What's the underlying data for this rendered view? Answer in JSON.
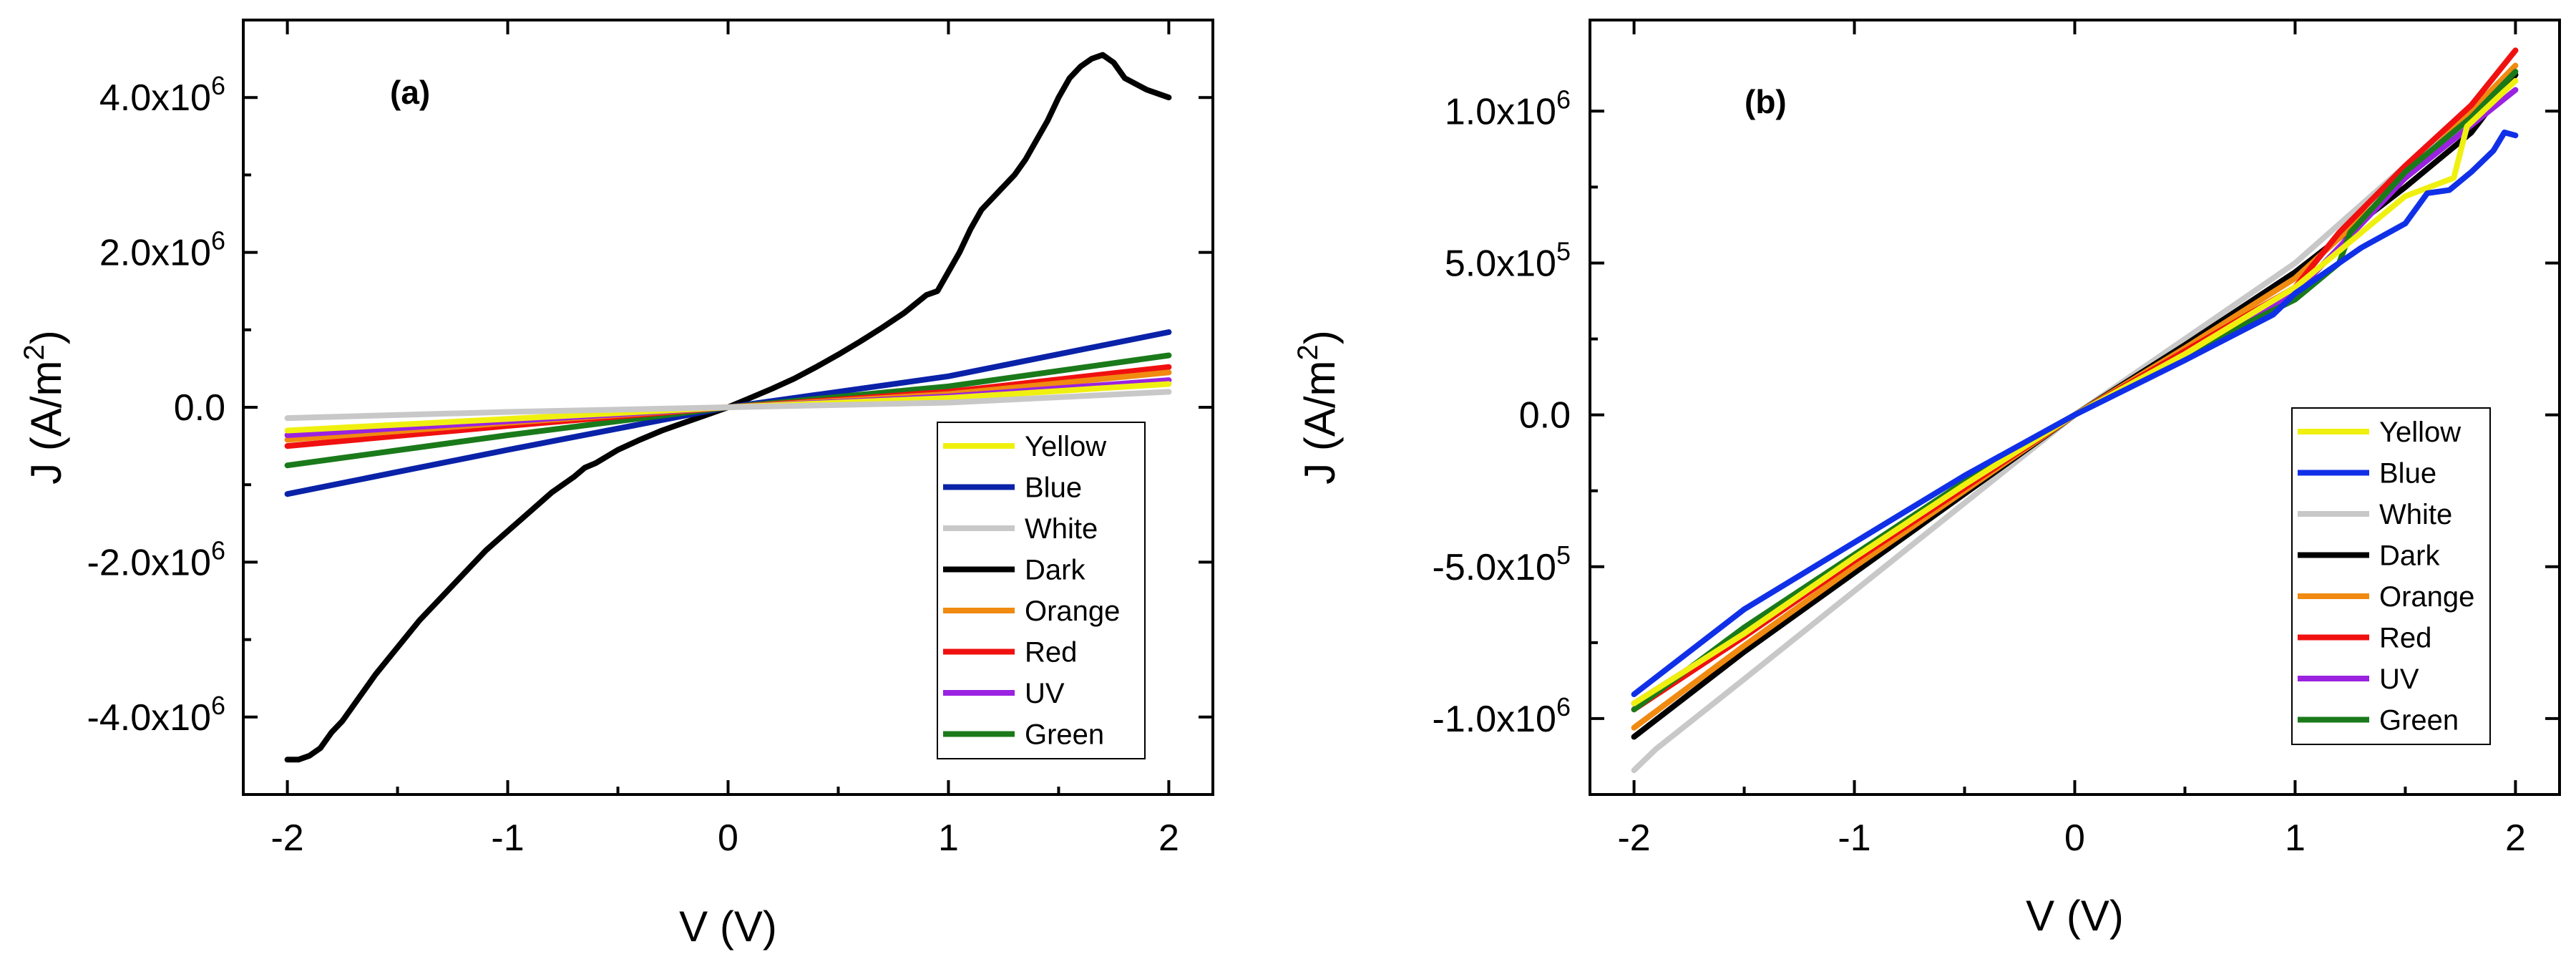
{
  "chart_data": [
    {
      "type": "line",
      "panel_label": "(a)",
      "xlabel": "V (V)",
      "ylabel_main": "J (A/m",
      "ylabel_sup": "2",
      "ylabel_close": ")",
      "xlim": [
        -2.2,
        2.2
      ],
      "ylim": [
        -5.0,
        5.0
      ],
      "y_multiplier": "x10^6",
      "x_ticks": [
        {
          "value": -2,
          "label": "-2"
        },
        {
          "value": -1,
          "label": "-1"
        },
        {
          "value": 0,
          "label": "0"
        },
        {
          "value": 1,
          "label": "1"
        },
        {
          "value": 2,
          "label": "2"
        }
      ],
      "y_ticks": [
        {
          "value": 4.0,
          "mant": "4.0x10",
          "exp": "6"
        },
        {
          "value": 2.0,
          "mant": "2.0x10",
          "exp": "6"
        },
        {
          "value": 0.0,
          "mant": "0.0",
          "exp": ""
        },
        {
          "value": -2.0,
          "mant": "-2.0x10",
          "exp": "6"
        },
        {
          "value": -4.0,
          "mant": "-4.0x10",
          "exp": "6"
        }
      ],
      "legend_position": "bottom-right",
      "series": [
        {
          "name": "Dark",
          "color": "#000000",
          "x": [
            -2.0,
            -1.95,
            -1.9,
            -1.85,
            -1.8,
            -1.75,
            -1.7,
            -1.6,
            -1.5,
            -1.4,
            -1.3,
            -1.2,
            -1.1,
            -1.0,
            -0.9,
            -0.8,
            -0.7,
            -0.65,
            -0.6,
            -0.5,
            -0.4,
            -0.3,
            -0.2,
            -0.1,
            0.0,
            0.1,
            0.2,
            0.3,
            0.4,
            0.5,
            0.6,
            0.7,
            0.8,
            0.9,
            0.95,
            1.0,
            1.05,
            1.1,
            1.15,
            1.2,
            1.25,
            1.3,
            1.35,
            1.4,
            1.45,
            1.5,
            1.55,
            1.6,
            1.65,
            1.7,
            1.75,
            1.8,
            1.9,
            2.0
          ],
          "values": [
            -4.55,
            -4.55,
            -4.5,
            -4.4,
            -4.2,
            -4.05,
            -3.85,
            -3.45,
            -3.1,
            -2.75,
            -2.45,
            -2.15,
            -1.85,
            -1.6,
            -1.35,
            -1.1,
            -0.9,
            -0.78,
            -0.72,
            -0.55,
            -0.42,
            -0.3,
            -0.2,
            -0.1,
            0.0,
            0.12,
            0.24,
            0.37,
            0.52,
            0.68,
            0.85,
            1.03,
            1.22,
            1.45,
            1.5,
            1.75,
            2.0,
            2.3,
            2.55,
            2.7,
            2.85,
            3.0,
            3.2,
            3.45,
            3.7,
            4.0,
            4.25,
            4.4,
            4.5,
            4.55,
            4.45,
            4.25,
            4.1,
            4.0
          ]
        },
        {
          "name": "Blue",
          "color": "#0a22a8",
          "x": [
            -2.0,
            -1.0,
            0.0,
            1.0,
            2.0
          ],
          "values": [
            -1.12,
            -0.55,
            0.0,
            0.4,
            0.97
          ]
        },
        {
          "name": "Green",
          "color": "#1a7a1a",
          "x": [
            -2.0,
            -1.0,
            0.0,
            1.0,
            2.0
          ],
          "values": [
            -0.75,
            -0.36,
            0.0,
            0.27,
            0.67
          ]
        },
        {
          "name": "Red",
          "color": "#f01010",
          "x": [
            -2.0,
            -1.0,
            0.0,
            1.0,
            2.0
          ],
          "values": [
            -0.5,
            -0.24,
            0.0,
            0.2,
            0.52
          ]
        },
        {
          "name": "Orange",
          "color": "#f08a10",
          "x": [
            -2.0,
            -1.0,
            0.0,
            1.0,
            2.0
          ],
          "values": [
            -0.42,
            -0.2,
            0.0,
            0.17,
            0.45
          ]
        },
        {
          "name": "UV",
          "color": "#9a22e0",
          "x": [
            -2.0,
            -1.0,
            0.0,
            1.0,
            2.0
          ],
          "values": [
            -0.36,
            -0.18,
            0.0,
            0.14,
            0.35
          ]
        },
        {
          "name": "Yellow",
          "color": "#f0f010",
          "x": [
            -2.0,
            -1.0,
            0.0,
            1.0,
            2.0
          ],
          "values": [
            -0.3,
            -0.15,
            0.0,
            0.12,
            0.3
          ]
        },
        {
          "name": "White",
          "color": "#c8c8c8",
          "x": [
            -2.0,
            -1.0,
            0.0,
            1.0,
            2.0
          ],
          "values": [
            -0.14,
            -0.06,
            0.0,
            0.06,
            0.2
          ]
        }
      ],
      "legend_order": [
        "Yellow",
        "Blue",
        "White",
        "Dark",
        "Orange",
        "Red",
        "UV",
        "Green"
      ]
    },
    {
      "type": "line",
      "panel_label": "(b)",
      "xlabel": "V (V)",
      "ylabel_main": "J (A/m",
      "ylabel_sup": "2",
      "ylabel_close": ")",
      "xlim": [
        -2.2,
        2.2
      ],
      "ylim": [
        -1.25,
        1.3
      ],
      "y_multiplier": "x10^6",
      "x_ticks": [
        {
          "value": -2,
          "label": "-2"
        },
        {
          "value": -1,
          "label": "-1"
        },
        {
          "value": 0,
          "label": "0"
        },
        {
          "value": 1,
          "label": "1"
        },
        {
          "value": 2,
          "label": "2"
        }
      ],
      "y_ticks": [
        {
          "value": 1.0,
          "mant": "1.0x10",
          "exp": "6"
        },
        {
          "value": 0.5,
          "mant": "5.0x10",
          "exp": "5"
        },
        {
          "value": 0.0,
          "mant": "0.0",
          "exp": ""
        },
        {
          "value": -0.5,
          "mant": "-5.0x10",
          "exp": "5"
        },
        {
          "value": -1.0,
          "mant": "-1.0x10",
          "exp": "6"
        }
      ],
      "legend_position": "bottom-right",
      "series": [
        {
          "name": "White",
          "color": "#c8c8c8",
          "x": [
            -2.0,
            -1.9,
            -1.5,
            -1.0,
            -0.5,
            0.0,
            0.5,
            1.0,
            1.5,
            1.8,
            2.0
          ],
          "values": [
            -1.17,
            -1.1,
            -0.87,
            -0.58,
            -0.29,
            0.0,
            0.25,
            0.5,
            0.82,
            1.0,
            1.12
          ]
        },
        {
          "name": "Dark",
          "color": "#000000",
          "x": [
            -2.0,
            -1.5,
            -1.0,
            -0.5,
            0.0,
            0.5,
            1.0,
            1.5,
            1.8,
            2.0
          ],
          "values": [
            -1.06,
            -0.78,
            -0.52,
            -0.26,
            0.0,
            0.23,
            0.47,
            0.75,
            0.93,
            1.12
          ]
        },
        {
          "name": "Orange",
          "color": "#f08a10",
          "x": [
            -2.0,
            -1.5,
            -1.0,
            -0.5,
            0.0,
            0.5,
            1.0,
            1.5,
            2.0
          ],
          "values": [
            -1.03,
            -0.76,
            -0.5,
            -0.25,
            0.0,
            0.22,
            0.45,
            0.78,
            1.15
          ]
        },
        {
          "name": "Red",
          "color": "#f01010",
          "x": [
            -2.0,
            -1.5,
            -1.0,
            -0.5,
            0.0,
            0.5,
            1.0,
            1.2,
            1.5,
            1.8,
            2.0
          ],
          "values": [
            -0.97,
            -0.73,
            -0.48,
            -0.24,
            0.0,
            0.21,
            0.42,
            0.6,
            0.82,
            1.02,
            1.2
          ]
        },
        {
          "name": "UV",
          "color": "#9a22e0",
          "x": [
            -2.0,
            -1.5,
            -1.0,
            -0.5,
            0.0,
            0.5,
            1.0,
            1.5,
            2.0
          ],
          "values": [
            -0.95,
            -0.72,
            -0.47,
            -0.23,
            0.0,
            0.2,
            0.4,
            0.78,
            1.07
          ]
        },
        {
          "name": "Green",
          "color": "#1a7a1a",
          "x": [
            -2.0,
            -1.5,
            -1.0,
            -0.5,
            0.0,
            0.5,
            1.0,
            1.2,
            1.25,
            1.5,
            1.8,
            2.0
          ],
          "values": [
            -0.97,
            -0.7,
            -0.46,
            -0.22,
            0.0,
            0.2,
            0.38,
            0.5,
            0.6,
            0.8,
            0.98,
            1.13
          ]
        },
        {
          "name": "Yellow",
          "color": "#f0f010",
          "x": [
            -2.0,
            -1.5,
            -1.0,
            -0.5,
            0.0,
            0.5,
            1.0,
            1.5,
            1.72,
            1.78,
            2.0
          ],
          "values": [
            -0.95,
            -0.72,
            -0.47,
            -0.23,
            0.0,
            0.2,
            0.42,
            0.72,
            0.78,
            0.95,
            1.1
          ]
        },
        {
          "name": "Blue",
          "color": "#1030e8",
          "x": [
            -2.0,
            -1.5,
            -1.0,
            -0.5,
            0.0,
            0.5,
            0.9,
            1.0,
            1.3,
            1.5,
            1.6,
            1.7,
            1.8,
            1.9,
            1.95,
            2.0
          ],
          "values": [
            -0.92,
            -0.64,
            -0.42,
            -0.2,
            0.0,
            0.18,
            0.33,
            0.4,
            0.55,
            0.63,
            0.73,
            0.74,
            0.8,
            0.87,
            0.93,
            0.92
          ]
        }
      ],
      "legend_order": [
        "Yellow",
        "Blue",
        "White",
        "Dark",
        "Orange",
        "Red",
        "UV",
        "Green"
      ]
    }
  ]
}
